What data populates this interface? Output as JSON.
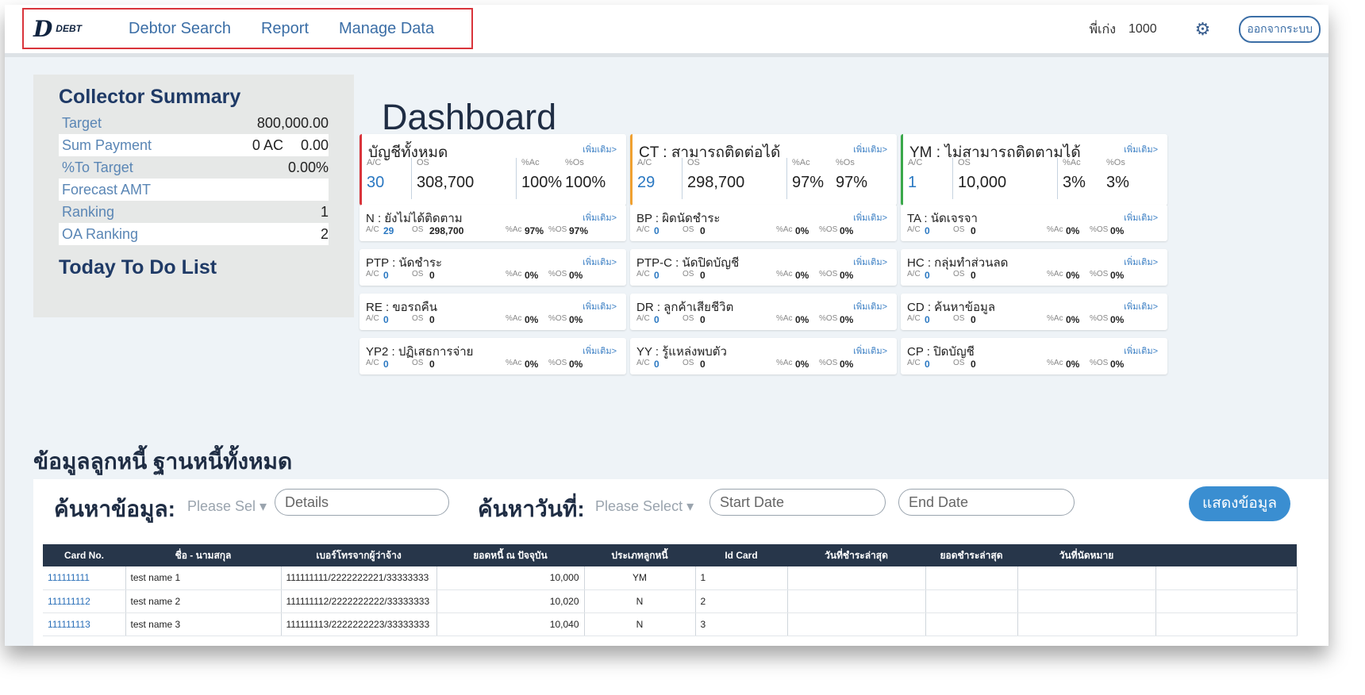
{
  "nav": {
    "logo_mark": "D",
    "logo_text": "DEBT",
    "links": [
      "Debtor Search",
      "Report",
      "Manage Data"
    ]
  },
  "user": {
    "label": "พี่เก่ง",
    "id": "1000",
    "logout": "ออกจากระบบ"
  },
  "collector": {
    "title": "Collector Summary",
    "rows": [
      {
        "label": "Target",
        "ac": "",
        "value": "800,000.00"
      },
      {
        "label": "Sum Payment",
        "ac": "0 AC",
        "value": "0.00"
      },
      {
        "label": "%To Target",
        "ac": "",
        "value": "0.00%"
      },
      {
        "label": "Forecast AMT",
        "ac": "",
        "value": ""
      },
      {
        "label": "Ranking",
        "ac": "",
        "value": "1"
      },
      {
        "label": "OA Ranking",
        "ac": "",
        "value": "2"
      }
    ],
    "todo": "Today To Do List"
  },
  "dashboard": {
    "title": "Dashboard",
    "more": "เพิ่มเติม>",
    "big": [
      {
        "title": "บัญชีทั้งหมด",
        "ac_label": "A/C",
        "os_label": "OS",
        "pac_label": "%Ac",
        "pos_label": "%Os",
        "ac": "30",
        "os": "308,700",
        "pac": "100%",
        "pos": "100%",
        "color": "#d9343b"
      },
      {
        "title": "CT : สามารถติดต่อได้",
        "ac_label": "A/C",
        "os_label": "OS",
        "pac_label": "%Ac",
        "pos_label": "%Os",
        "ac": "29",
        "os": "298,700",
        "pac": "97%",
        "pos": "97%",
        "color": "#f0a030"
      },
      {
        "title": "YM : ไม่สามารถติดตามได้",
        "ac_label": "A/C",
        "os_label": "OS",
        "pac_label": "%Ac",
        "pos_label": "%Os",
        "ac": "1",
        "os": "10,000",
        "pac": "3%",
        "pos": "3%",
        "color": "#3aa84a"
      }
    ],
    "small": [
      [
        {
          "title": "N : ยังไม่ได้ติดตาม",
          "ac": "29",
          "os": "298,700",
          "pac": "97%",
          "pos": "97%"
        },
        {
          "title": "BP : ผิดนัดชำระ",
          "ac": "0",
          "os": "0",
          "pac": "0%",
          "pos": "0%"
        },
        {
          "title": "TA : นัดเจรจา",
          "ac": "0",
          "os": "0",
          "pac": "0%",
          "pos": "0%"
        }
      ],
      [
        {
          "title": "PTP : นัดชำระ",
          "ac": "0",
          "os": "0",
          "pac": "0%",
          "pos": "0%"
        },
        {
          "title": "PTP-C : นัดปิดบัญชี",
          "ac": "0",
          "os": "0",
          "pac": "0%",
          "pos": "0%"
        },
        {
          "title": "HC : กลุ่มทำส่วนลด",
          "ac": "0",
          "os": "0",
          "pac": "0%",
          "pos": "0%"
        }
      ],
      [
        {
          "title": "RE : ขอรถคืน",
          "ac": "0",
          "os": "0",
          "pac": "0%",
          "pos": "0%"
        },
        {
          "title": "DR : ลูกค้าเสียชีวิต",
          "ac": "0",
          "os": "0",
          "pac": "0%",
          "pos": "0%"
        },
        {
          "title": "CD : ค้นหาข้อมูล",
          "ac": "0",
          "os": "0",
          "pac": "0%",
          "pos": "0%"
        }
      ],
      [
        {
          "title": "YP2 : ปฏิเสธการจ่าย",
          "ac": "0",
          "os": "0",
          "pac": "0%",
          "pos": "0%"
        },
        {
          "title": "YY : รู้แหล่งพบตัว",
          "ac": "0",
          "os": "0",
          "pac": "0%",
          "pos": "0%"
        },
        {
          "title": "CP : ปิดบัญชี",
          "ac": "0",
          "os": "0",
          "pac": "0%",
          "pos": "0%"
        }
      ]
    ],
    "small_labels": {
      "ac": "A/C",
      "os": "OS",
      "pac": "%Ac",
      "pos": "%OS"
    }
  },
  "debtor": {
    "title": "ข้อมูลลูกหนี้ ฐานหนี้ทั้งหมด",
    "search_label": "ค้นหาข้อมูล:",
    "search_select": "Please Sel ▾",
    "details_placeholder": "Details",
    "date_label": "ค้นหาวันที่:",
    "date_select": "Please Select ▾",
    "start_placeholder": "Start Date",
    "end_placeholder": "End Date",
    "show_button": "แสดงข้อมูล"
  },
  "table": {
    "columns": [
      "Card No.",
      "ชื่อ - นามสกุล",
      "เบอร์โทรจากผู้ว่าจ้าง",
      "ยอดหนี้ ณ ปัจจุบัน",
      "ประเภทลูกหนี้",
      "Id Card",
      "วันที่ชำระล่าสุด",
      "ยอดชำระล่าสุด",
      "วันที่นัดหมาย",
      ""
    ],
    "rows": [
      [
        "111111111",
        "test name 1",
        "111111111/2222222221/33333333",
        "10,000",
        "YM",
        "1",
        "",
        "",
        "",
        ""
      ],
      [
        "111111112",
        "test name 2",
        "111111112/2222222222/33333333",
        "10,020",
        "N",
        "2",
        "",
        "",
        "",
        ""
      ],
      [
        "111111113",
        "test name 3",
        "111111113/2222222223/33333333",
        "10,040",
        "N",
        "3",
        "",
        "",
        "",
        ""
      ]
    ]
  }
}
